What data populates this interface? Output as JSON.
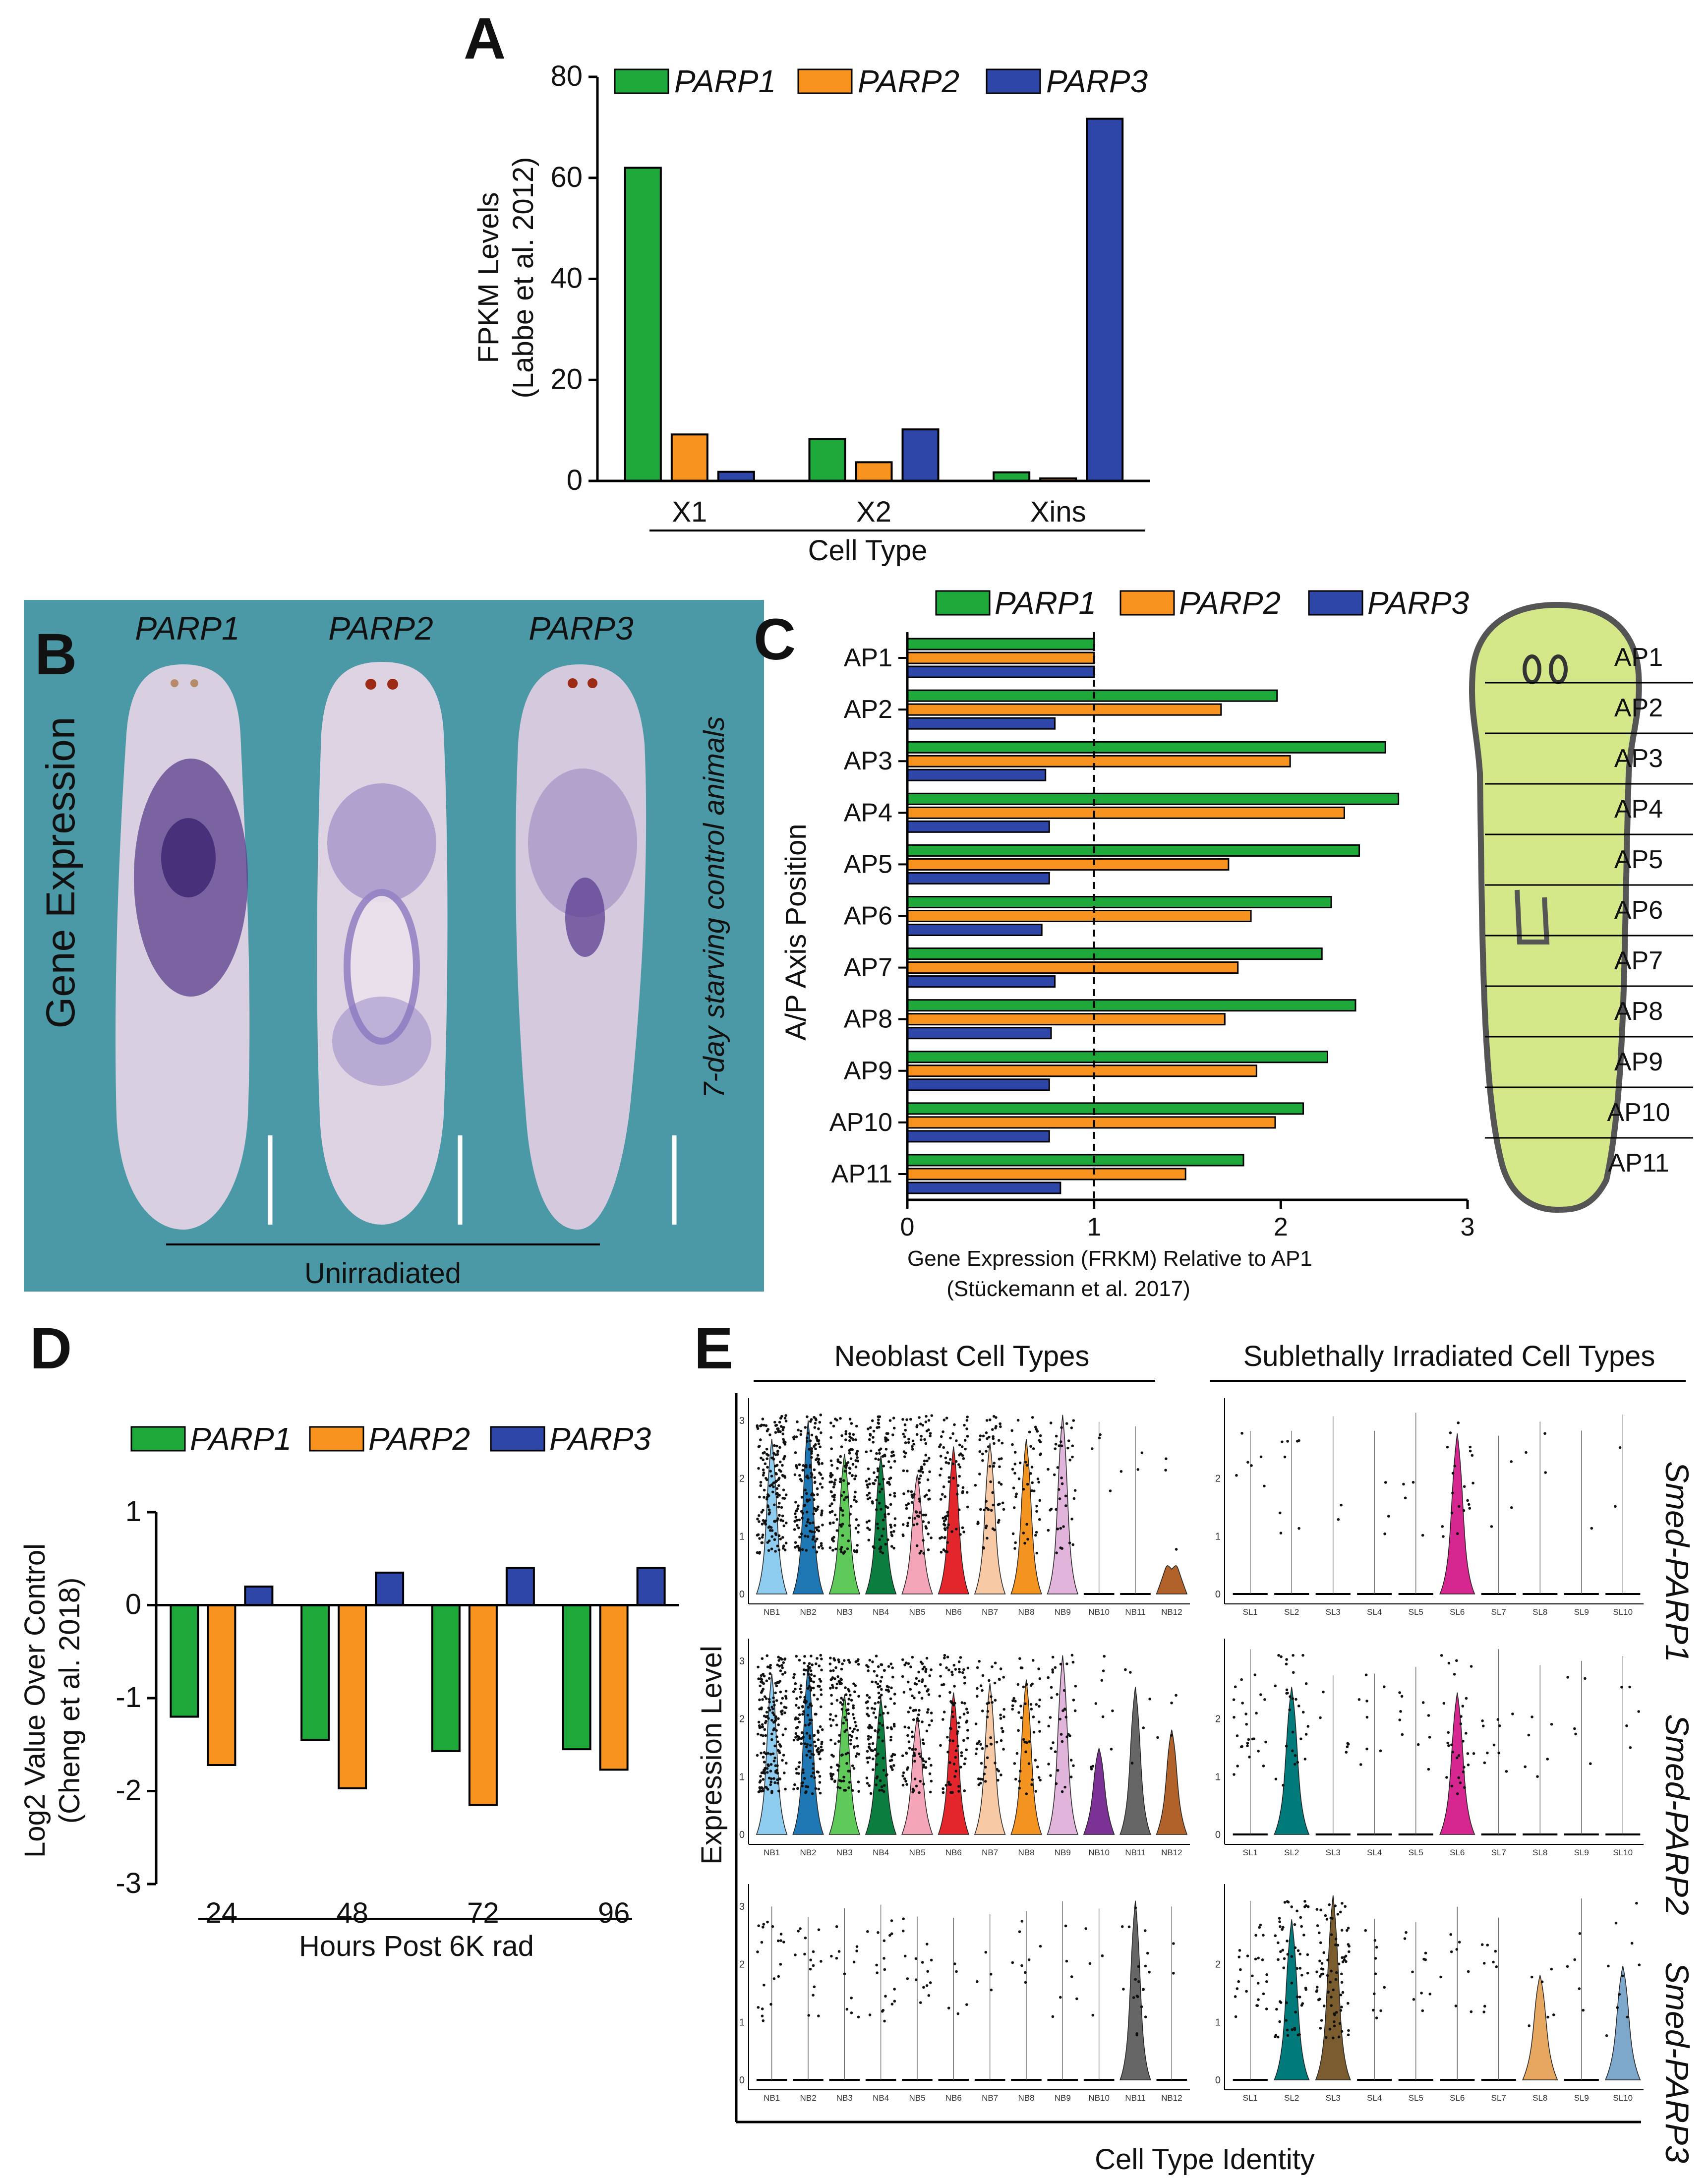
{
  "colors": {
    "green": "#1fa83a",
    "orange": "#f7931e",
    "blue": "#2e46a8",
    "teal": "#4b98a6",
    "worm": "#d4e88a"
  },
  "panel_labels": {
    "a": "A",
    "b": "B",
    "c": "C",
    "d": "D",
    "e": "E"
  },
  "legend": {
    "parp1": "PARP1",
    "parp2": "PARP2",
    "parp3": "PARP3"
  },
  "chart_data": [
    {
      "id": "A",
      "type": "bar",
      "categories": [
        "X1",
        "X2",
        "Xins"
      ],
      "series": [
        {
          "name": "PARP1",
          "values": [
            62,
            8.3,
            1.7
          ]
        },
        {
          "name": "PARP2",
          "values": [
            9.2,
            3.7,
            0.5
          ]
        },
        {
          "name": "PARP3",
          "values": [
            1.8,
            10.2,
            71.7
          ]
        }
      ],
      "ylabel_line1": "FPKM Levels",
      "ylabel_line2": "(Labbe et al. 2012)",
      "xlabel": "Cell Type",
      "ylim": [
        0,
        80
      ],
      "yticks": [
        "0",
        "20",
        "40",
        "60",
        "80"
      ]
    },
    {
      "id": "C",
      "type": "bar",
      "orientation": "horizontal",
      "categories": [
        "AP1",
        "AP2",
        "AP3",
        "AP4",
        "AP5",
        "AP6",
        "AP7",
        "AP8",
        "AP9",
        "AP10",
        "AP11"
      ],
      "series": [
        {
          "name": "PARP1",
          "values": [
            1.0,
            1.98,
            2.56,
            2.63,
            2.42,
            2.27,
            2.22,
            2.4,
            2.25,
            2.12,
            1.8
          ]
        },
        {
          "name": "PARP2",
          "values": [
            1.0,
            1.68,
            2.05,
            2.34,
            1.72,
            1.84,
            1.77,
            1.7,
            1.87,
            1.97,
            1.49
          ]
        },
        {
          "name": "PARP3",
          "values": [
            1.0,
            0.79,
            0.74,
            0.76,
            0.76,
            0.72,
            0.79,
            0.77,
            0.76,
            0.76,
            0.82
          ]
        }
      ],
      "xlabel_line1": "Gene Expression (FRKM) Relative to AP1",
      "xlabel_line2": "(Stückemann et al. 2017)",
      "ylabel": "A/P Axis Position",
      "xlim": [
        0,
        3
      ],
      "xticks": [
        "0",
        "1",
        "2",
        "3"
      ]
    },
    {
      "id": "D",
      "type": "bar",
      "categories": [
        "24",
        "48",
        "72",
        "96"
      ],
      "series": [
        {
          "name": "PARP1",
          "values": [
            -1.2,
            -1.45,
            -1.57,
            -1.55
          ]
        },
        {
          "name": "PARP2",
          "values": [
            -1.72,
            -1.97,
            -2.15,
            -1.77
          ]
        },
        {
          "name": "PARP3",
          "values": [
            0.2,
            0.35,
            0.4,
            0.4
          ]
        }
      ],
      "ylabel_line1": "Log2 Value Over Control",
      "ylabel_line2": "(Cheng et al. 2018)",
      "xlabel": "Hours Post 6K rad",
      "ylim": [
        -3,
        1
      ],
      "yticks": [
        "1",
        "0",
        "-1",
        "-2",
        "-3"
      ]
    }
  ],
  "panel_b": {
    "genes": [
      "PARP1",
      "PARP2",
      "PARP3"
    ],
    "ylabel": "Gene Expression",
    "side_label": "7-day starving control animals",
    "bottom_label": "Unirradiated"
  },
  "panel_e": {
    "group_left": "Neoblast Cell Types",
    "group_right": "Sublethally Irradiated Cell Types",
    "ylabel": "Expression Level",
    "xlabel": "Cell Type Identity",
    "genes": [
      "Smed-PARP1",
      "Smed-PARP2",
      "Smed-PARP3"
    ],
    "nb_labels": [
      "NB1",
      "NB2",
      "NB3",
      "NB4",
      "NB5",
      "NB6",
      "NB7",
      "NB8",
      "NB9",
      "NB10",
      "NB11",
      "NB12"
    ],
    "sl_labels": [
      "SL1",
      "SL2",
      "SL3",
      "SL4",
      "SL5",
      "SL6",
      "SL7",
      "SL8",
      "SL9",
      "SL10"
    ],
    "nb_colors": [
      "#8ecdf0",
      "#1f78b4",
      "#5fc95a",
      "#0b7d3f",
      "#f4a6b8",
      "#e3262b",
      "#f8c9a5",
      "#f39320",
      "#e1b4dc",
      "#7b3294",
      "#666666",
      "#b0622a"
    ],
    "sl_colors": [
      "#66c2a5",
      "#007a7a",
      "#7a5c2e",
      "#e7298a",
      "#d95f02",
      "#d62791",
      "#999999",
      "#e6a861",
      "#bbbbbb",
      "#7ea7cc"
    ],
    "yticks_r1": [
      "0",
      "1",
      "2",
      "3"
    ],
    "yticks_r2": [
      "0",
      "1",
      "2",
      "3"
    ],
    "yticks_r3": [
      "0",
      "1",
      "2",
      "3"
    ]
  }
}
